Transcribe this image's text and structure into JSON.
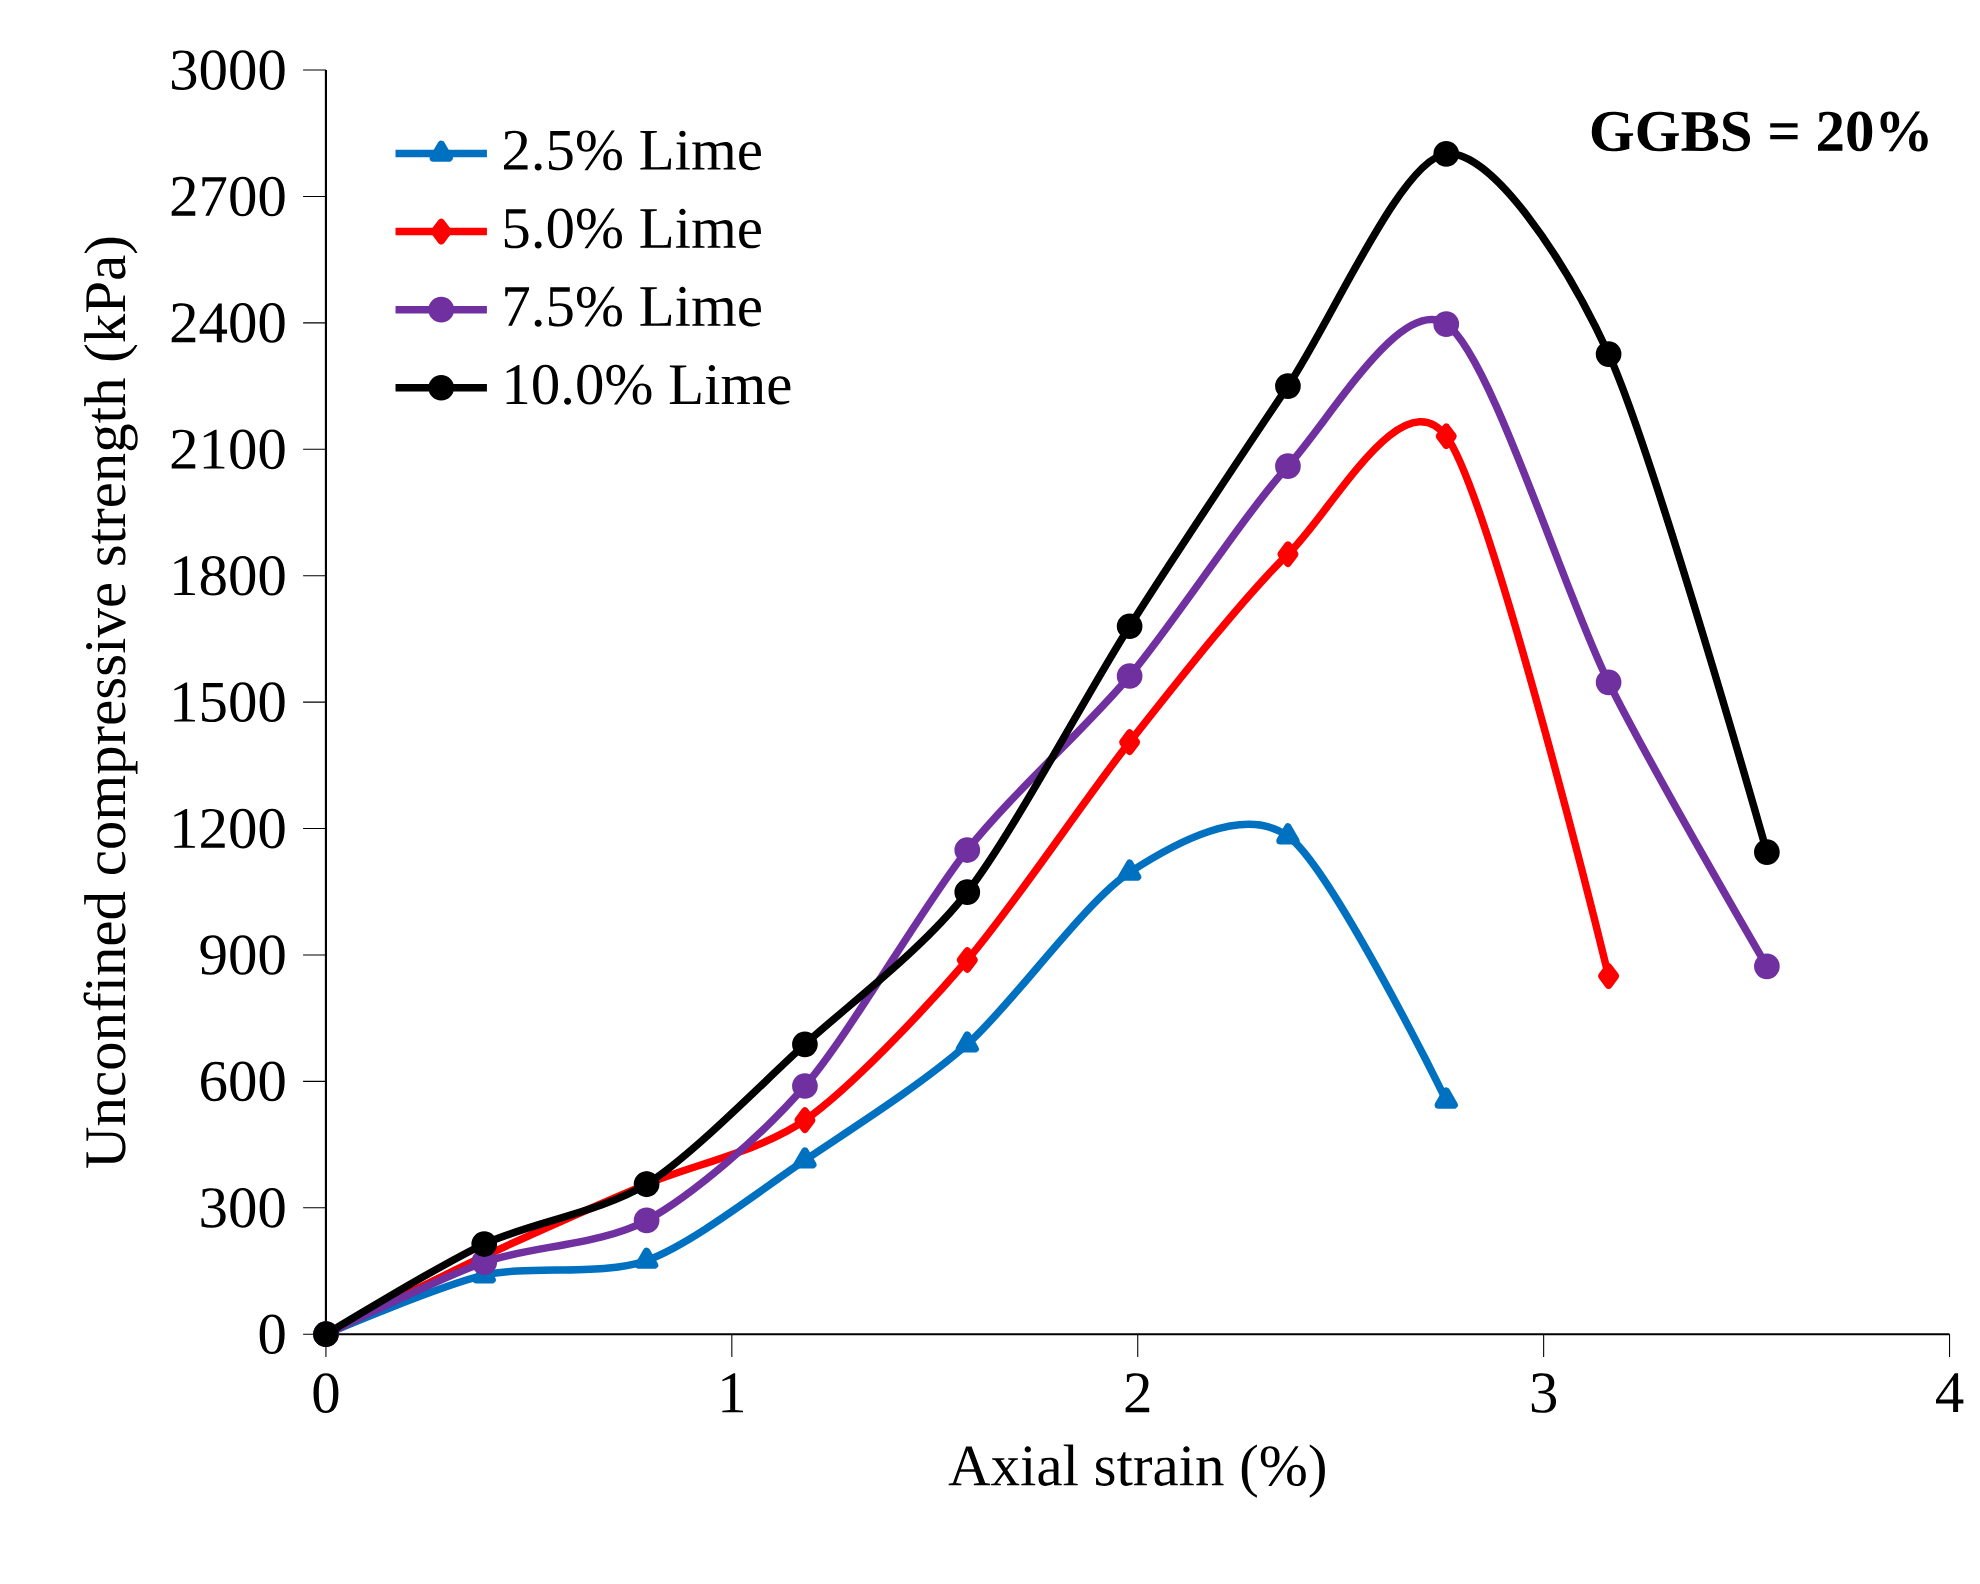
{
  "chart_data": {
    "type": "line",
    "xlabel": "Axial strain (%)",
    "ylabel": "Unconfined compressive strength (kPa)",
    "annotations": [
      "GGBS = 20%"
    ],
    "xlim": [
      0,
      4
    ],
    "xticks": [
      0,
      1,
      2,
      3,
      4
    ],
    "ylim": [
      0,
      3000
    ],
    "yticks": [
      0,
      300,
      600,
      900,
      1200,
      1500,
      1800,
      2100,
      2400,
      2700,
      3000
    ],
    "grid": false,
    "legend": "top left",
    "line_style": "solid",
    "x": [
      0,
      0.39,
      0.79,
      1.18,
      1.58,
      1.98,
      2.37,
      2.76,
      3.16,
      3.55
    ],
    "series": [
      {
        "name": "2.5% Lime",
        "color": "#0070c0",
        "marker": "triangle",
        "values": [
          0,
          140,
          175,
          413,
          688,
          1096,
          1182,
          555,
          null,
          null
        ]
      },
      {
        "name": "5.0% Lime",
        "color": "#ff0000",
        "marker": "diamond",
        "values": [
          0,
          185,
          356,
          508,
          888,
          1405,
          1851,
          2131,
          850,
          null
        ]
      },
      {
        "name": "7.5% Lime",
        "color": "#7030a0",
        "marker": "circle",
        "values": [
          0,
          171,
          270,
          589,
          1149,
          1562,
          2060,
          2397,
          1547,
          873
        ]
      },
      {
        "name": "10.0% Lime",
        "color": "#000000",
        "marker": "circle",
        "values": [
          0,
          214,
          356,
          688,
          1049,
          1680,
          2250,
          2801,
          2326,
          1144
        ]
      }
    ]
  }
}
